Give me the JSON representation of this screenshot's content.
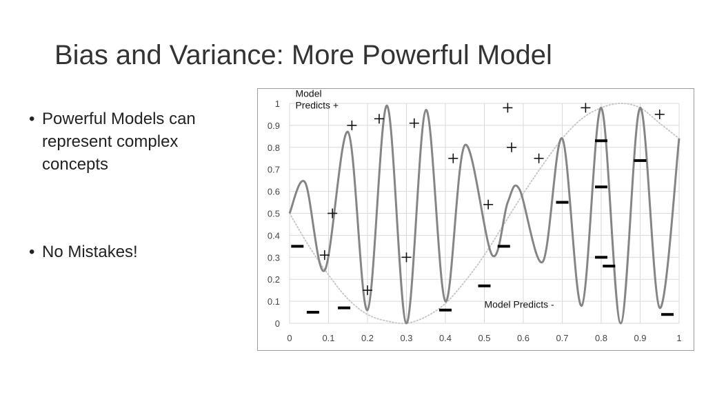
{
  "slide": {
    "title": "Bias and Variance: More Powerful Model",
    "bullets": [
      "Powerful Models can represent complex concepts",
      "No Mistakes!"
    ]
  },
  "chart_data": {
    "type": "scatter",
    "title": "",
    "xlabel": "",
    "ylabel": "",
    "xlim": [
      0,
      1
    ],
    "ylim": [
      0,
      1
    ],
    "x_ticks": [
      "0",
      "0.1",
      "0.2",
      "0.3",
      "0.4",
      "0.5",
      "0.6",
      "0.7",
      "0.8",
      "0.9",
      "1"
    ],
    "y_ticks": [
      "0",
      "0.1",
      "0.2",
      "0.3",
      "0.4",
      "0.5",
      "0.6",
      "0.7",
      "0.8",
      "0.9",
      "1"
    ],
    "grid": true,
    "annotations": [
      {
        "text_lines": [
          "Model",
          "Predicts +"
        ],
        "x": 0.015,
        "y": 1.03
      },
      {
        "text_lines": [
          "Model Predicts -"
        ],
        "x": 0.5,
        "y": 0.07
      }
    ],
    "series": [
      {
        "marker": "+",
        "points": [
          [
            0.11,
            0.5
          ],
          [
            0.09,
            0.31
          ],
          [
            0.16,
            0.9
          ],
          [
            0.23,
            0.93
          ],
          [
            0.2,
            0.15
          ],
          [
            0.32,
            0.91
          ],
          [
            0.3,
            0.3
          ],
          [
            0.42,
            0.75
          ],
          [
            0.51,
            0.54
          ],
          [
            0.56,
            0.98
          ],
          [
            0.57,
            0.8
          ],
          [
            0.64,
            0.75
          ],
          [
            0.76,
            0.98
          ],
          [
            0.95,
            0.95
          ]
        ]
      },
      {
        "marker": "-",
        "points": [
          [
            0.02,
            0.35
          ],
          [
            0.06,
            0.05
          ],
          [
            0.14,
            0.07
          ],
          [
            0.4,
            0.06
          ],
          [
            0.5,
            0.17
          ],
          [
            0.55,
            0.35
          ],
          [
            0.7,
            0.55
          ],
          [
            0.8,
            0.83
          ],
          [
            0.8,
            0.62
          ],
          [
            0.8,
            0.3
          ],
          [
            0.82,
            0.26
          ],
          [
            0.9,
            0.74
          ],
          [
            0.97,
            0.04
          ]
        ]
      }
    ],
    "curves": [
      {
        "style": "solid",
        "color": "#858585",
        "points": [
          [
            0.0,
            0.5
          ],
          [
            0.04,
            0.64
          ],
          [
            0.09,
            0.24
          ],
          [
            0.15,
            0.87
          ],
          [
            0.2,
            0.06
          ],
          [
            0.25,
            0.99
          ],
          [
            0.3,
            0.0
          ],
          [
            0.35,
            0.97
          ],
          [
            0.4,
            0.1
          ],
          [
            0.45,
            0.81
          ],
          [
            0.52,
            0.31
          ],
          [
            0.56,
            0.55
          ],
          [
            0.59,
            0.61
          ],
          [
            0.65,
            0.28
          ],
          [
            0.7,
            0.84
          ],
          [
            0.75,
            0.08
          ],
          [
            0.8,
            0.98
          ],
          [
            0.85,
            0.0
          ],
          [
            0.9,
            0.98
          ],
          [
            0.95,
            0.07
          ],
          [
            1.0,
            0.84
          ]
        ]
      },
      {
        "style": "dotted",
        "color": "#c8c8c8",
        "points": [
          [
            0.0,
            0.5
          ],
          [
            0.05,
            0.35
          ],
          [
            0.1,
            0.22
          ],
          [
            0.15,
            0.11
          ],
          [
            0.2,
            0.04
          ],
          [
            0.25,
            0.01
          ],
          [
            0.3,
            0.0
          ],
          [
            0.35,
            0.03
          ],
          [
            0.4,
            0.09
          ],
          [
            0.45,
            0.19
          ],
          [
            0.5,
            0.31
          ],
          [
            0.55,
            0.45
          ],
          [
            0.6,
            0.59
          ],
          [
            0.65,
            0.72
          ],
          [
            0.7,
            0.84
          ],
          [
            0.75,
            0.93
          ],
          [
            0.8,
            0.98
          ],
          [
            0.85,
            1.0
          ],
          [
            0.9,
            0.98
          ],
          [
            0.95,
            0.91
          ],
          [
            1.0,
            0.84
          ]
        ]
      }
    ]
  }
}
